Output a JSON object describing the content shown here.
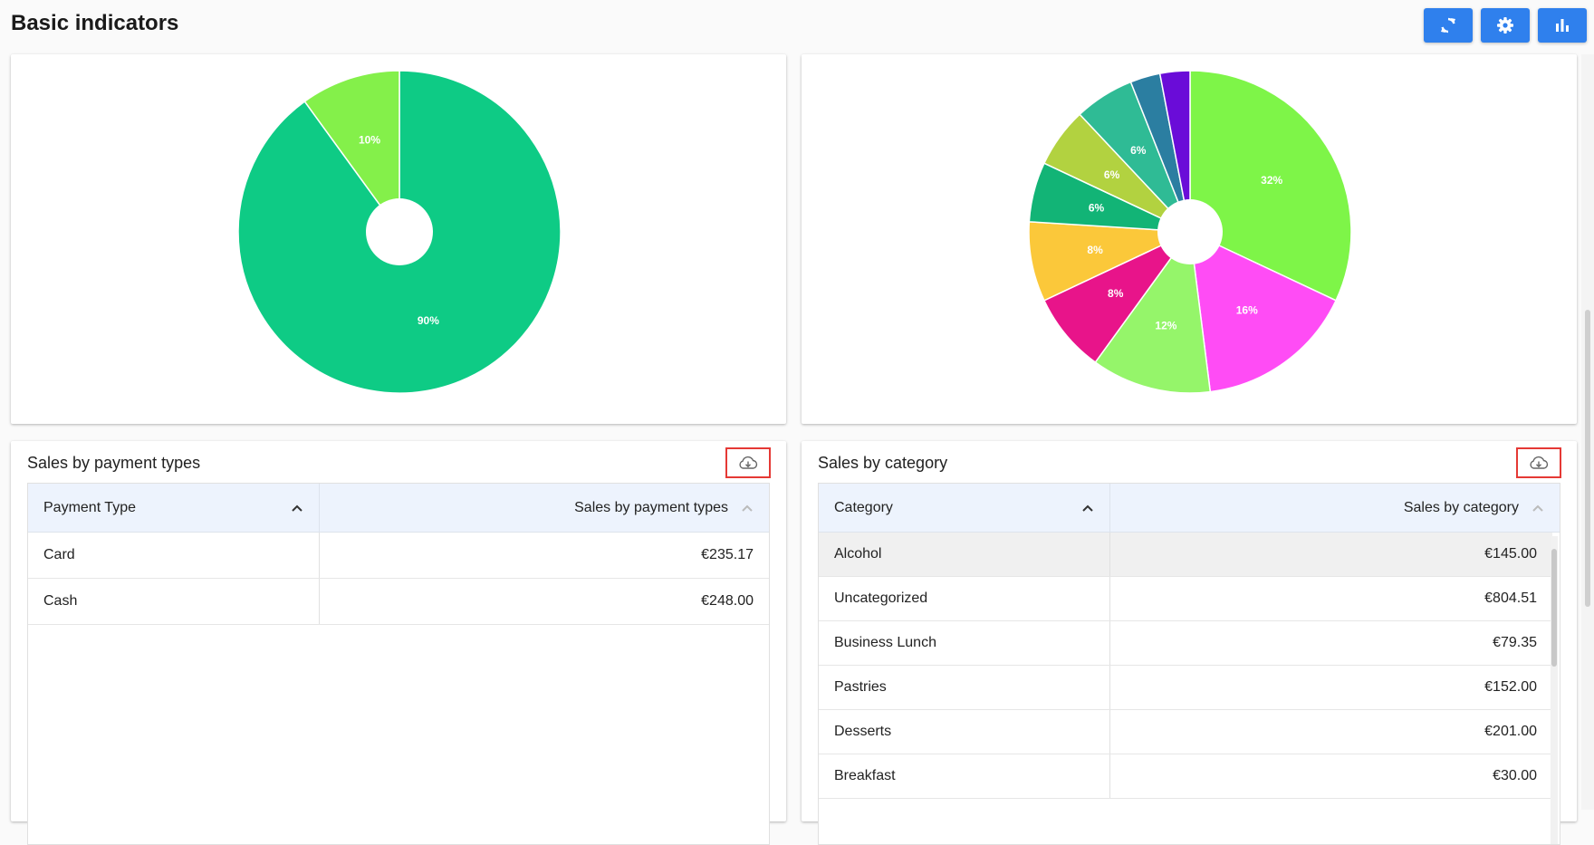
{
  "page": {
    "title": "Basic indicators"
  },
  "toolbar": {
    "buttons": [
      {
        "name": "refresh-button",
        "icon": "refresh-icon"
      },
      {
        "name": "settings-button",
        "icon": "gear-icon"
      },
      {
        "name": "chart-view-button",
        "icon": "bar-chart-icon"
      }
    ],
    "accent": "#2f80ed"
  },
  "chart_data": [
    {
      "type": "pie",
      "donut": true,
      "slices": [
        {
          "value": 90,
          "label": "90%",
          "color": "#0ecb85"
        },
        {
          "value": 10,
          "label": "10%",
          "color": "#84f04a"
        }
      ]
    },
    {
      "type": "pie",
      "donut": true,
      "slices": [
        {
          "value": 32,
          "label": "32%",
          "color": "#7ef548"
        },
        {
          "value": 16,
          "label": "16%",
          "color": "#ff4cf5"
        },
        {
          "value": 12,
          "label": "12%",
          "color": "#95f56a"
        },
        {
          "value": 8,
          "label": "8%",
          "color": "#e8148a"
        },
        {
          "value": 8,
          "label": "8%",
          "color": "#fbc83a"
        },
        {
          "value": 6,
          "label": "6%",
          "color": "#12b476"
        },
        {
          "value": 6,
          "label": "6%",
          "color": "#b2d240"
        },
        {
          "value": 6,
          "label": "6%",
          "color": "#2fbb95"
        },
        {
          "value": 3,
          "label": "",
          "color": "#2b7ea1"
        },
        {
          "value": 3,
          "label": "",
          "color": "#6a0cd8"
        }
      ]
    }
  ],
  "payment_table": {
    "title": "Sales by payment types",
    "columns": [
      "Payment Type",
      "Sales by payment types"
    ],
    "rows": [
      [
        "Card",
        "€235.17"
      ],
      [
        "Cash",
        "€248.00"
      ]
    ]
  },
  "category_table": {
    "title": "Sales by category",
    "columns": [
      "Category",
      "Sales by category"
    ],
    "rows": [
      [
        "Alcohol",
        "€145.00"
      ],
      [
        "Uncategorized",
        "€804.51"
      ],
      [
        "Business Lunch",
        "€79.35"
      ],
      [
        "Pastries",
        "€152.00"
      ],
      [
        "Desserts",
        "€201.00"
      ],
      [
        "Breakfast",
        "€30.00"
      ]
    ]
  }
}
